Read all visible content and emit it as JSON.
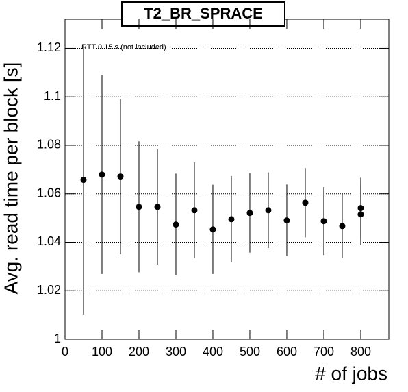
{
  "chart_data": {
    "type": "scatter",
    "title": "T2_BR_SPRACE",
    "x_label": "# of jobs",
    "y_label": "Avg. read time per block [s]",
    "annotation": "RTT 0.15 s (not included)",
    "series": [
      {
        "color": "#000000",
        "x": [
          50,
          100,
          150,
          200,
          250,
          300,
          350,
          400,
          450,
          500,
          550,
          600,
          650,
          700,
          750,
          800,
          800
        ],
        "values": [
          1.0657,
          1.0679,
          1.0671,
          1.0546,
          1.0546,
          1.0473,
          1.0532,
          1.0453,
          1.0495,
          1.0521,
          1.0532,
          1.049,
          1.0563,
          1.0487,
          1.0467,
          1.0541,
          1.0515
        ],
        "errors": [
          0.0555,
          0.041,
          0.032,
          0.027,
          0.0238,
          0.021,
          0.0197,
          0.0184,
          0.0178,
          0.0164,
          0.0156,
          0.0148,
          0.0143,
          0.014,
          0.0133,
          0.0125,
          0.0125
        ]
      }
    ],
    "xlim": [
      0,
      876
    ],
    "xticks": [
      0,
      100,
      200,
      300,
      400,
      500,
      600,
      700,
      800
    ],
    "ylim": [
      1,
      1.132
    ],
    "yticks": [
      1,
      1.02,
      1.04,
      1.06,
      1.08,
      1.1,
      1.12
    ],
    "grid": true
  }
}
